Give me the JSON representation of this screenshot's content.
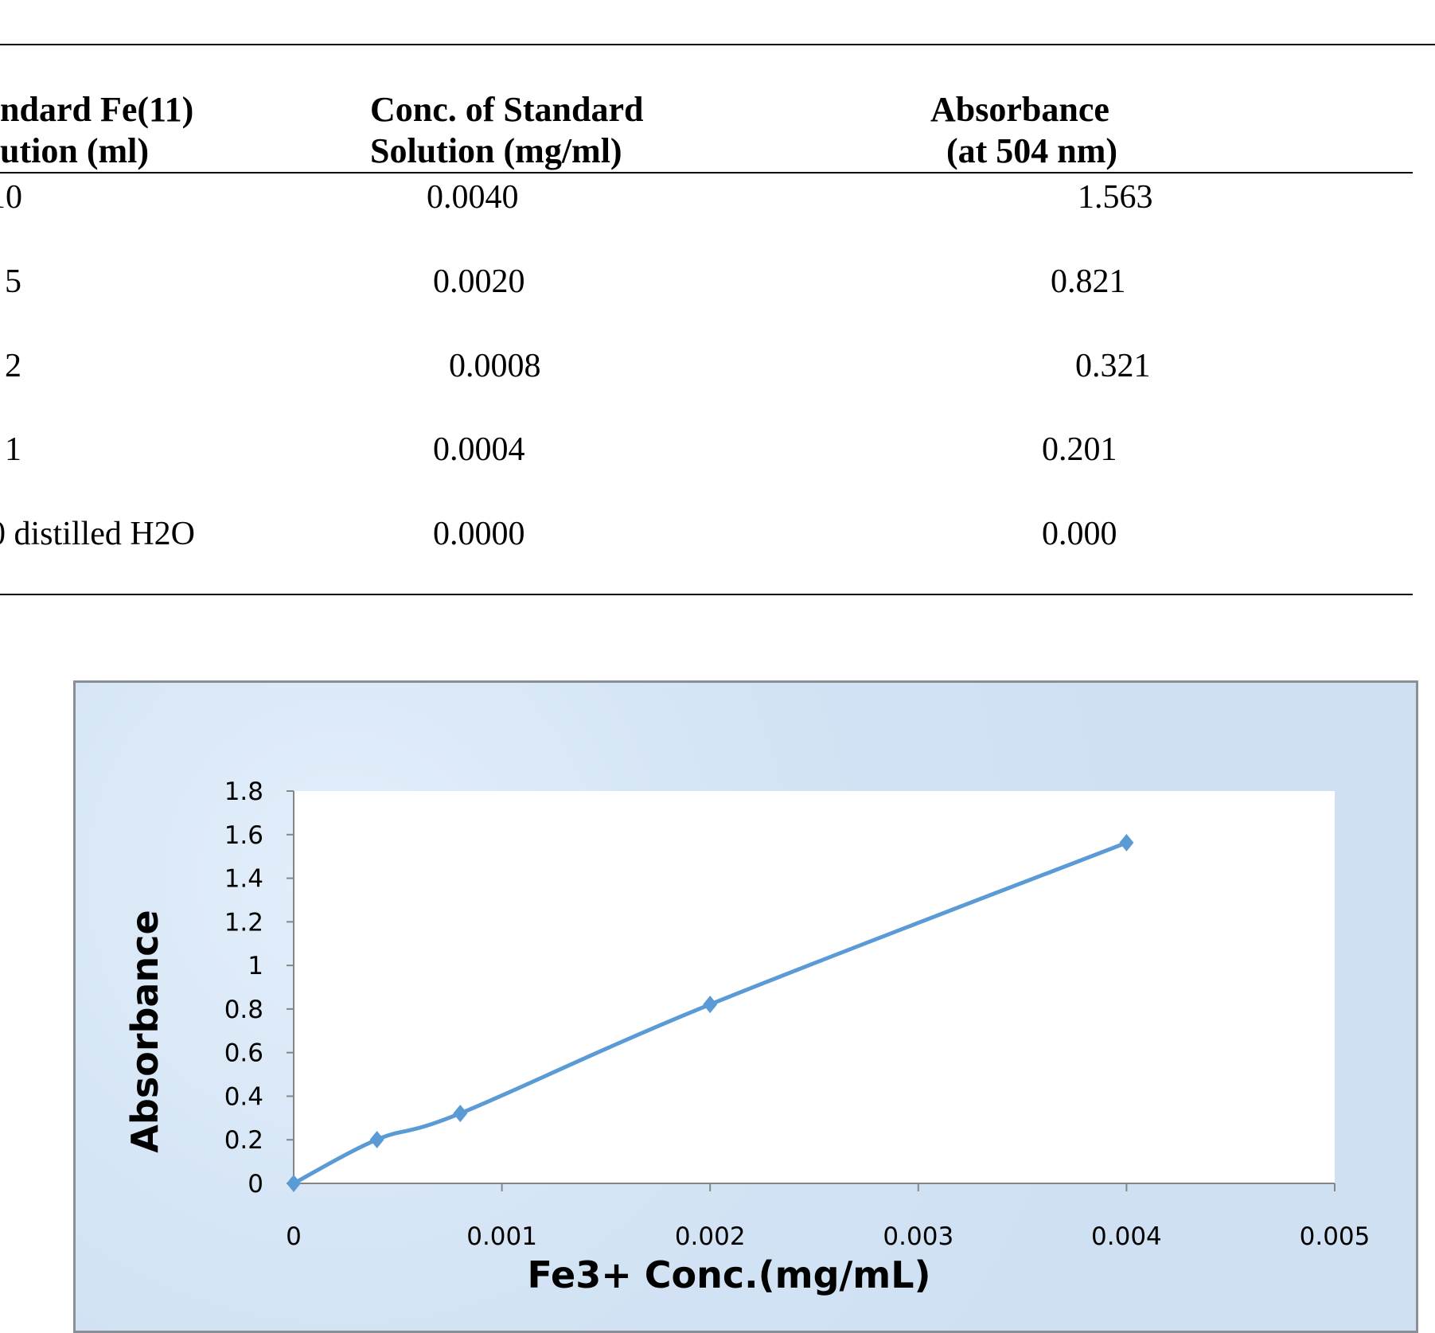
{
  "table": {
    "headers": [
      {
        "line1": "ndard Fe(11)",
        "line2": "ution (ml)"
      },
      {
        "line1": "Conc. of Standard",
        "line2": "Solution (mg/ml)"
      },
      {
        "line1": "Absorbance",
        "line2": "(at 504 nm)"
      }
    ],
    "rows": [
      [
        "10",
        "0.0040",
        "1.563"
      ],
      [
        "5",
        "0.0020",
        "0.821"
      ],
      [
        "2",
        "0.0008",
        "0.321"
      ],
      [
        "1",
        "0.0004",
        "0.201"
      ],
      [
        "0 distilled H2O",
        "0.0000",
        "0.000"
      ]
    ]
  },
  "chart_data": {
    "type": "line",
    "title": "",
    "xlabel": "Fe3+ Conc.(mg/mL)",
    "ylabel": "Absorbance",
    "x": [
      0,
      0.0004,
      0.0008,
      0.002,
      0.004
    ],
    "y": [
      0,
      0.201,
      0.321,
      0.821,
      1.563
    ],
    "xlim": [
      0,
      0.005
    ],
    "ylim": [
      0,
      1.8
    ],
    "xticks": [
      "0",
      "0.001",
      "0.002",
      "0.003",
      "0.004",
      "0.005"
    ],
    "yticks": [
      "0",
      "0.2",
      "0.4",
      "0.6",
      "0.8",
      "1",
      "1.2",
      "1.4",
      "1.6",
      "1.8"
    ],
    "grid": false,
    "marker": "diamond",
    "smooth": true,
    "colors": {
      "series": "#5b9bd5",
      "plot_bg": "#ffffff",
      "chart_bg": "#d5e5f5",
      "axis": "#868686"
    }
  }
}
